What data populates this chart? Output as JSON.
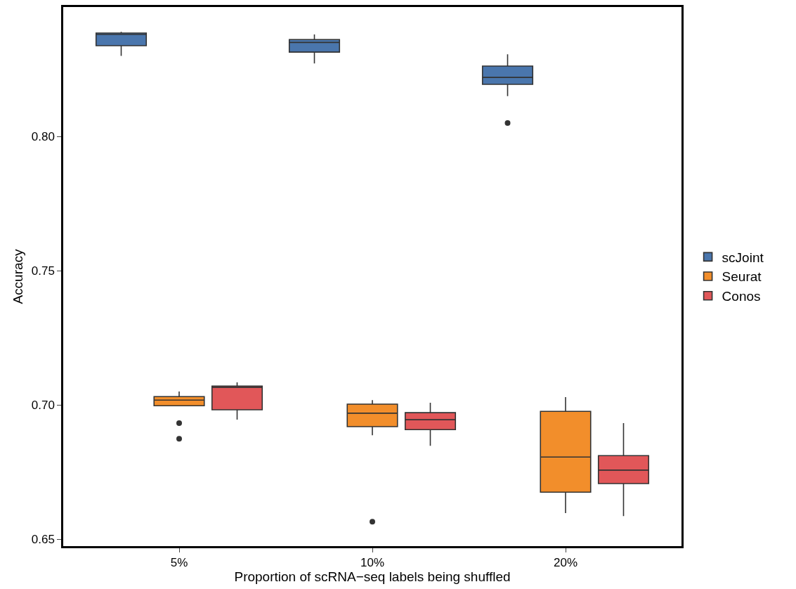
{
  "chart_data": {
    "type": "box",
    "xlabel": "Proportion of scRNA−seq labels being shuffled",
    "ylabel": "Accuracy",
    "categories": [
      "5%",
      "10%",
      "20%"
    ],
    "ylim": [
      0.6474,
      0.8482
    ],
    "yticks": [
      0.65,
      {
        "value": 0.7,
        "label": "0.70"
      },
      0.75,
      {
        "value": 0.8,
        "label": "0.80"
      }
    ],
    "grid": false,
    "legend": "right",
    "series": [
      {
        "name": "scJoint",
        "color": "#4a76ad",
        "boxes": [
          {
            "low": 0.83,
            "q1": 0.8338,
            "median": 0.838,
            "q3": 0.8385,
            "high": 0.839
          },
          {
            "low": 0.8272,
            "q1": 0.8314,
            "median": 0.835,
            "q3": 0.8361,
            "high": 0.838
          },
          {
            "low": 0.815,
            "q1": 0.8194,
            "median": 0.822,
            "q3": 0.8262,
            "high": 0.8306,
            "outliers": [
              0.805
            ]
          }
        ]
      },
      {
        "name": "Seurat",
        "color": "#f28e2b",
        "boxes": [
          {
            "low": 0.6997,
            "q1": 0.6997,
            "median": 0.7018,
            "q3": 0.7031,
            "high": 0.705,
            "outliers": [
              0.6932,
              0.6874
            ]
          },
          {
            "low": 0.6887,
            "q1": 0.6919,
            "median": 0.6969,
            "q3": 0.7003,
            "high": 0.7018,
            "outliers": [
              0.6565
            ]
          },
          {
            "low": 0.6597,
            "q1": 0.6675,
            "median": 0.6806,
            "q3": 0.6976,
            "high": 0.7029
          }
        ]
      },
      {
        "name": "Conos",
        "color": "#e15759",
        "boxes": [
          {
            "low": 0.6945,
            "q1": 0.6982,
            "median": 0.7065,
            "q3": 0.707,
            "high": 0.7084
          },
          {
            "low": 0.6848,
            "q1": 0.6908,
            "median": 0.6945,
            "q3": 0.6971,
            "high": 0.7008
          },
          {
            "low": 0.6586,
            "q1": 0.6707,
            "median": 0.6757,
            "q3": 0.6811,
            "high": 0.6932
          }
        ]
      }
    ]
  }
}
